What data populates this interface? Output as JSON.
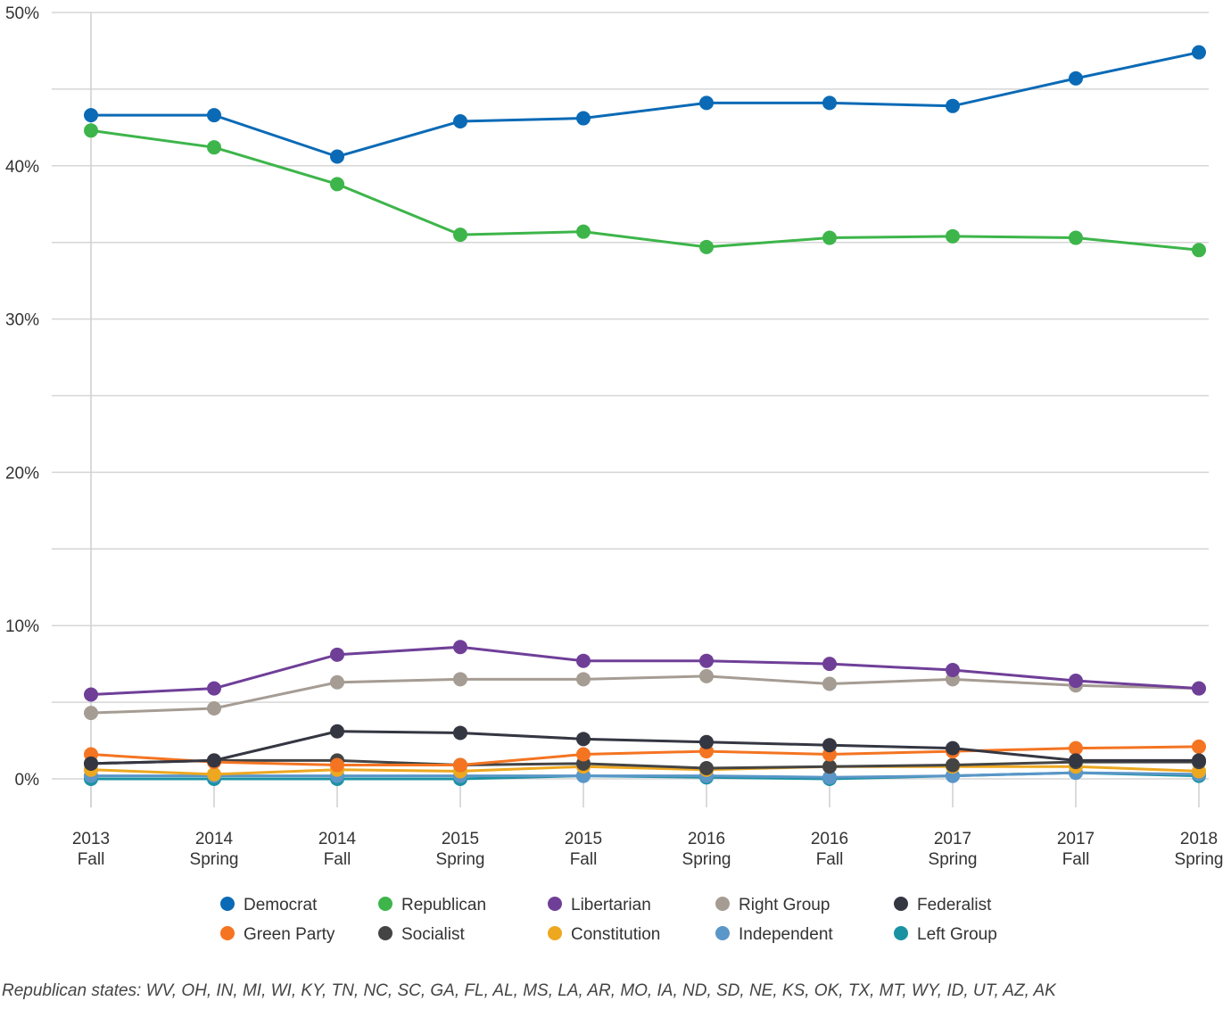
{
  "chart_data": {
    "type": "line",
    "title": "",
    "xlabel": "",
    "ylabel": "",
    "categories": [
      [
        "2013",
        "Fall"
      ],
      [
        "2014",
        "Spring"
      ],
      [
        "2014",
        "Fall"
      ],
      [
        "2015",
        "Spring"
      ],
      [
        "2015",
        "Fall"
      ],
      [
        "2016",
        "Spring"
      ],
      [
        "2016",
        "Fall"
      ],
      [
        "2017",
        "Spring"
      ],
      [
        "2017",
        "Fall"
      ],
      [
        "2018",
        "Spring"
      ]
    ],
    "ylim": [
      0,
      50
    ],
    "yticks": [
      0,
      10,
      20,
      30,
      40,
      50
    ],
    "ytick_labels": [
      "0%",
      "10%",
      "20%",
      "30%",
      "40%",
      "50%"
    ],
    "grid": true,
    "legend_position": "bottom",
    "series": [
      {
        "name": "Democrat",
        "color": "#0a6ab6",
        "values": [
          43.3,
          43.3,
          40.6,
          42.9,
          43.1,
          44.1,
          44.1,
          43.9,
          45.7,
          47.4
        ]
      },
      {
        "name": "Republican",
        "color": "#3db54a",
        "values": [
          42.3,
          41.2,
          38.8,
          35.5,
          35.7,
          34.7,
          35.3,
          35.4,
          35.3,
          34.5
        ]
      },
      {
        "name": "Libertarian",
        "color": "#6f3f98",
        "values": [
          5.5,
          5.9,
          8.1,
          8.6,
          7.7,
          7.7,
          7.5,
          7.1,
          6.4,
          5.9
        ]
      },
      {
        "name": "Right Group",
        "color": "#a59c93",
        "values": [
          4.3,
          4.6,
          6.3,
          6.5,
          6.5,
          6.7,
          6.2,
          6.5,
          6.1,
          5.9
        ]
      },
      {
        "name": "Federalist",
        "color": "#343642",
        "values": [
          1.0,
          1.2,
          3.1,
          3.0,
          2.6,
          2.4,
          2.2,
          2.0,
          1.2,
          1.2
        ]
      },
      {
        "name": "Green Party",
        "color": "#f47421",
        "values": [
          1.6,
          1.1,
          0.9,
          0.9,
          1.6,
          1.8,
          1.6,
          1.8,
          2.0,
          2.1
        ]
      },
      {
        "name": "Socialist",
        "color": "#444444",
        "values": [
          1.0,
          1.2,
          1.2,
          0.9,
          1.0,
          0.7,
          0.8,
          0.9,
          1.1,
          1.1
        ]
      },
      {
        "name": "Constitution",
        "color": "#eda820",
        "values": [
          0.6,
          0.3,
          0.6,
          0.5,
          0.8,
          0.6,
          0.8,
          0.8,
          0.8,
          0.5
        ]
      },
      {
        "name": "Independent",
        "color": "#5a96c8",
        "values": [
          0.2,
          0.2,
          0.2,
          0.2,
          0.2,
          0.2,
          0.1,
          0.2,
          0.4,
          0.3
        ]
      },
      {
        "name": "Left Group",
        "color": "#1a92a2",
        "values": [
          0.0,
          0.0,
          0.0,
          0.0,
          0.2,
          0.1,
          0.0,
          0.2,
          0.4,
          0.2
        ]
      }
    ]
  },
  "footnote": "Republican states: WV, OH, IN, MI, WI, KY, TN, NC, SC, GA, FL, AL, MS, LA, AR, MO, IA, ND, SD, NE, KS, OK, TX, MT, WY, ID, UT, AZ, AK"
}
